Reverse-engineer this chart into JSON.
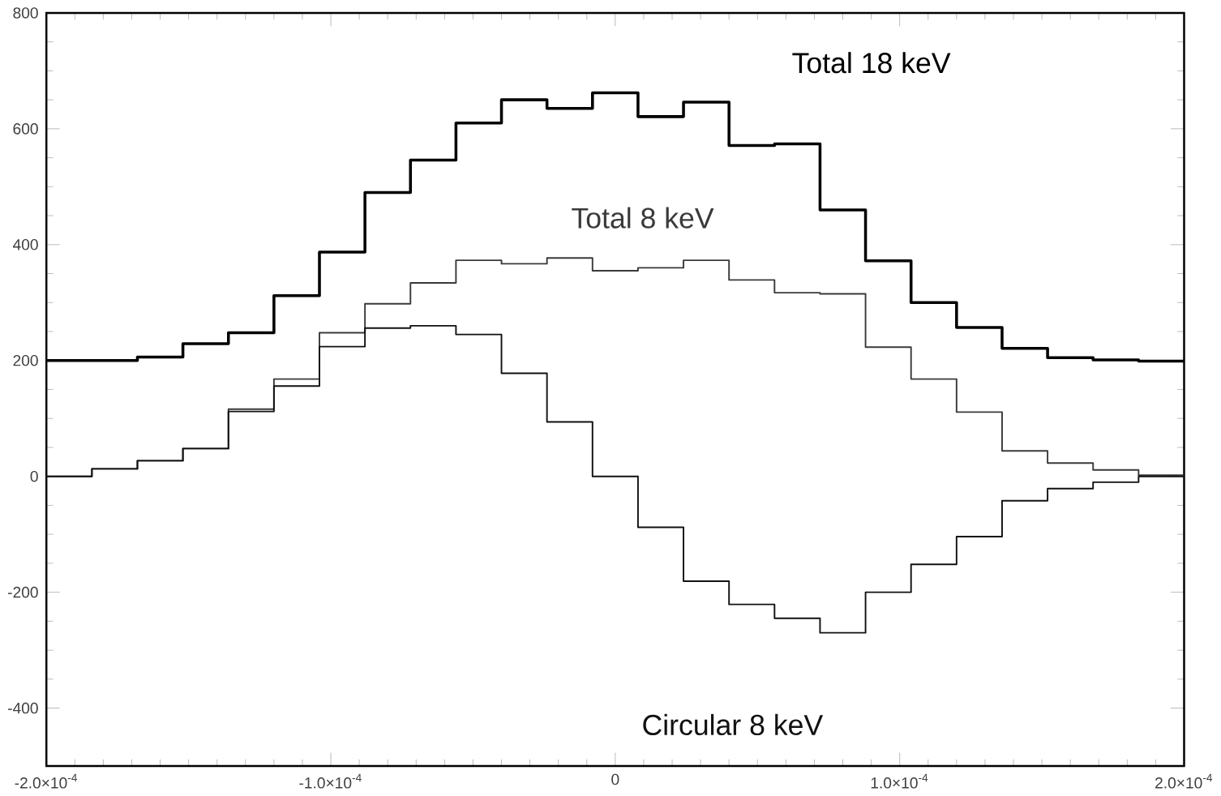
{
  "chart_data": {
    "type": "histogram",
    "bins": [
      -0.0002,
      -0.000184,
      -0.000168,
      -0.000152,
      -0.000136,
      -0.00012,
      -0.000104,
      -8.8e-05,
      -7.2e-05,
      -5.6e-05,
      -4e-05,
      -2.4e-05,
      -8e-06,
      8e-06,
      2.4e-05,
      4e-05,
      5.6e-05,
      7.2e-05,
      8.8e-05,
      0.000104,
      0.00012,
      0.000136,
      0.000152,
      0.000168,
      0.000184,
      0.0002
    ],
    "xlim": [
      -0.0002,
      0.0002
    ],
    "ylim": [
      -500,
      800
    ],
    "xticks": [
      {
        "value": -0.0002,
        "label": "-2.0×10$^{-4}$"
      },
      {
        "value": -0.0001,
        "label": "-1.0×10$^{-4}$"
      },
      0,
      {
        "value": 0.0001,
        "label": "1.0×10$^{-4}$"
      },
      {
        "value": 0.0002,
        "label": "2.0×10$^{-4}$"
      }
    ],
    "yticks": [
      -400,
      -200,
      0,
      200,
      400,
      600,
      800
    ],
    "series": [
      {
        "name": "Total 18 keV",
        "color": "#000000",
        "values": [
          200,
          200,
          206,
          229,
          248,
          312,
          387,
          490,
          546,
          610,
          650,
          635,
          662,
          621,
          646,
          571,
          574,
          460,
          372,
          300,
          257,
          221,
          205,
          201,
          199
        ]
      },
      {
        "name": "Total 8 keV",
        "color": "#3a3a3a",
        "values": [
          0,
          13,
          27,
          48,
          116,
          168,
          248,
          298,
          334,
          373,
          367,
          377,
          355,
          360,
          373,
          339,
          317,
          315,
          223,
          168,
          111,
          44,
          23,
          11,
          2
        ]
      },
      {
        "name": "Circular 8 keV",
        "color": "#111111",
        "values": [
          0,
          13,
          27,
          48,
          112,
          156,
          224,
          256,
          260,
          245,
          178,
          94,
          0,
          -88,
          -181,
          -221,
          -245,
          -270,
          -200,
          -152,
          -104,
          -42,
          -21,
          -10,
          0
        ]
      }
    ]
  }
}
